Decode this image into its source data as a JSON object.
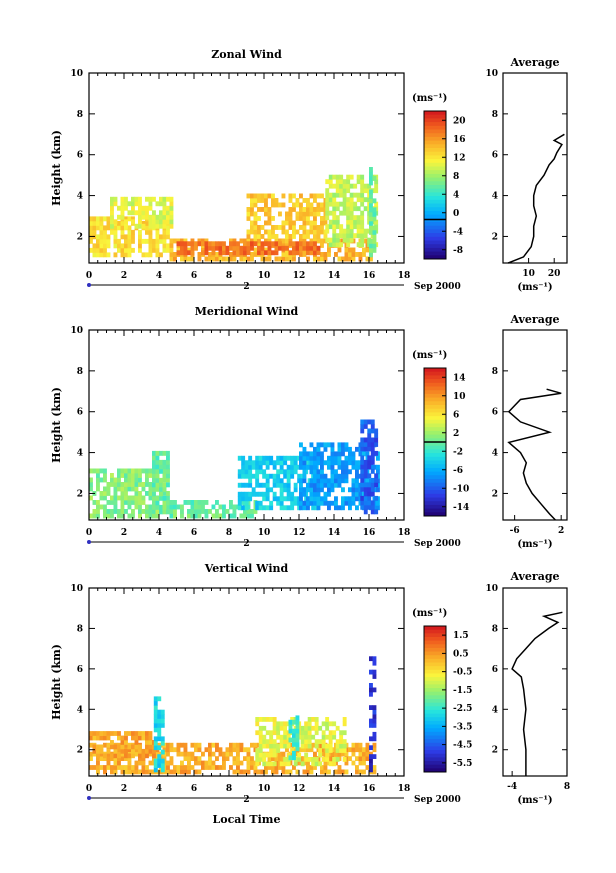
{
  "figure": {
    "xlabel": "Local Time",
    "date_label": "Sep 2000",
    "day_label": "2",
    "unit_label": "(ms⁻¹)",
    "avg_title": "Average",
    "ylabel": "Height (km)"
  },
  "chart_data": [
    {
      "type": "heatmap",
      "title": "Zonal Wind",
      "xlabel": "Local Time",
      "ylabel": "Height (km)",
      "xlim": [
        0,
        18
      ],
      "ylim": [
        0.7,
        10
      ],
      "xticks": [
        "0",
        "2",
        "4",
        "6",
        "8",
        "10",
        "12",
        "14",
        "16",
        "18"
      ],
      "yticks": [
        "2",
        "4",
        "6",
        "8",
        "10"
      ],
      "colorbar": {
        "label": "(ms⁻¹)",
        "range": [
          -8,
          22
        ],
        "ticks": [
          "20",
          "16",
          "12",
          "8",
          "4",
          "0",
          "-4",
          "-8"
        ],
        "contour_value": 0
      },
      "field": {
        "blobs": [
          {
            "x0": 0.0,
            "x1": 4.6,
            "y0": 1.0,
            "y1": 2.9,
            "v": 13
          },
          {
            "x0": 1.2,
            "x1": 4.8,
            "y0": 2.4,
            "y1": 3.8,
            "v": 11
          },
          {
            "x0": 4.6,
            "x1": 16.0,
            "y0": 0.8,
            "y1": 1.9,
            "v": 15
          },
          {
            "x0": 5.0,
            "x1": 13.0,
            "y0": 1.1,
            "y1": 1.6,
            "v": 18
          },
          {
            "x0": 9.0,
            "x1": 13.5,
            "y0": 1.9,
            "y1": 4.0,
            "v": 14
          },
          {
            "x0": 13.5,
            "x1": 16.4,
            "y0": 1.5,
            "y1": 5.0,
            "v": 10
          },
          {
            "x0": 16.0,
            "x1": 16.4,
            "y0": 1.0,
            "y1": 5.2,
            "v": 7
          }
        ],
        "blank_fraction": 0.28
      },
      "profile": {
        "title": "Average",
        "xlabel": "(ms⁻¹)",
        "xlim": [
          0,
          25
        ],
        "xticks": [
          "10",
          "20"
        ],
        "yticks": [
          "2",
          "4",
          "6",
          "8",
          "10"
        ],
        "height": [
          0.7,
          1.0,
          1.5,
          2.0,
          2.5,
          3.0,
          3.5,
          4.0,
          4.5,
          5.0,
          5.5,
          5.8,
          6.1,
          6.3,
          6.5,
          6.7,
          7.0
        ],
        "value": [
          2,
          8,
          11,
          12,
          12,
          13,
          12,
          12,
          13,
          16,
          18,
          20,
          21,
          22,
          23,
          20,
          24
        ]
      }
    },
    {
      "type": "heatmap",
      "title": "Meridional Wind",
      "xlabel": "Local Time",
      "ylabel": "Height (km)",
      "xlim": [
        0,
        18
      ],
      "ylim": [
        0.7,
        10
      ],
      "xticks": [
        "0",
        "2",
        "4",
        "6",
        "8",
        "10",
        "12",
        "14",
        "16",
        "18"
      ],
      "yticks": [
        "2",
        "4",
        "6",
        "8",
        "10"
      ],
      "colorbar": {
        "label": "(ms⁻¹)",
        "range": [
          -16,
          16
        ],
        "ticks": [
          "14",
          "10",
          "6",
          "2",
          "-2",
          "-6",
          "-10",
          "-14"
        ],
        "contour_value": 0
      },
      "field": {
        "blobs": [
          {
            "x0": 0.0,
            "x1": 4.6,
            "y0": 0.8,
            "y1": 3.2,
            "v": 1
          },
          {
            "x0": 3.6,
            "x1": 4.6,
            "y0": 1.0,
            "y1": 4.0,
            "v": 0
          },
          {
            "x0": 4.6,
            "x1": 9.5,
            "y0": 0.8,
            "y1": 1.6,
            "v": 0
          },
          {
            "x0": 8.5,
            "x1": 13.0,
            "y0": 1.2,
            "y1": 3.8,
            "v": -4
          },
          {
            "x0": 12.0,
            "x1": 16.4,
            "y0": 1.2,
            "y1": 4.5,
            "v": -7
          },
          {
            "x0": 15.5,
            "x1": 16.4,
            "y0": 1.0,
            "y1": 5.5,
            "v": -10
          }
        ],
        "blank_fraction": 0.3
      },
      "profile": {
        "title": "Average",
        "xlabel": "(ms⁻¹)",
        "xlim": [
          -8,
          3
        ],
        "xticks": [
          "-6",
          "2"
        ],
        "yticks": [
          "2",
          "4",
          "6",
          "8"
        ],
        "height": [
          0.7,
          1.0,
          1.5,
          2.0,
          2.5,
          3.0,
          3.5,
          4.0,
          4.5,
          5.0,
          5.5,
          6.0,
          6.3,
          6.6,
          6.9,
          7.1
        ],
        "value": [
          1,
          0,
          -1.5,
          -3,
          -4,
          -4.5,
          -4,
          -5,
          -7,
          0,
          -5,
          -7,
          -6,
          -5,
          2,
          -0.5
        ]
      }
    },
    {
      "type": "heatmap",
      "title": "Vertical Wind",
      "xlabel": "Local Time",
      "ylabel": "Height (km)",
      "xlim": [
        0,
        18
      ],
      "ylim": [
        0.7,
        10
      ],
      "xticks": [
        "0",
        "2",
        "4",
        "6",
        "8",
        "10",
        "12",
        "14",
        "16",
        "18"
      ],
      "yticks": [
        "2",
        "4",
        "6",
        "8",
        "10"
      ],
      "colorbar": {
        "label": "(ms⁻¹)",
        "range": [
          -6.5,
          2.5
        ],
        "ticks": [
          "1.5",
          "0.5",
          "-0.5",
          "-1.5",
          "-2.5",
          "-3.5",
          "-4.5",
          "-5.5"
        ],
        "contour_value": null
      },
      "field": {
        "blobs": [
          {
            "x0": 0.0,
            "x1": 16.2,
            "y0": 0.8,
            "y1": 2.2,
            "v": 0.5
          },
          {
            "x0": 0.0,
            "x1": 3.8,
            "y0": 1.6,
            "y1": 2.8,
            "v": 0.6
          },
          {
            "x0": 9.5,
            "x1": 14.5,
            "y0": 1.2,
            "y1": 3.6,
            "v": -0.8
          },
          {
            "x0": 3.7,
            "x1": 4.2,
            "y0": 0.9,
            "y1": 4.5,
            "v": -3.0
          },
          {
            "x0": 11.4,
            "x1": 11.9,
            "y0": 1.5,
            "y1": 3.5,
            "v": -2.5
          },
          {
            "x0": 16.0,
            "x1": 16.4,
            "y0": 0.9,
            "y1": 6.5,
            "v": -5.5
          }
        ],
        "blank_fraction": 0.35
      },
      "profile": {
        "title": "Average",
        "xlabel": "(ms⁻¹)",
        "xlim": [
          -6,
          8
        ],
        "xticks": [
          "-4",
          "8"
        ],
        "yticks": [
          "2",
          "4",
          "6",
          "8",
          "10"
        ],
        "height": [
          0.7,
          1.0,
          2.0,
          3.0,
          4.0,
          5.0,
          5.6,
          6.0,
          6.5,
          7.0,
          7.5,
          8.0,
          8.3,
          8.6,
          8.8
        ],
        "value": [
          -1,
          -1,
          -1,
          -1.5,
          -1,
          -1.5,
          -2,
          -4,
          -3,
          -1,
          1,
          4,
          6,
          3,
          7
        ]
      }
    }
  ]
}
